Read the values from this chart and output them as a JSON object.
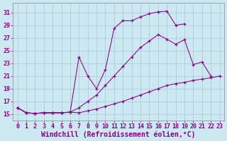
{
  "bg_color": "#cce8f0",
  "grid_color": "#aac8d8",
  "line_color": "#880088",
  "marker": "+",
  "xlabel": "Windchill (Refroidissement éolien,°C)",
  "xlabel_fontsize": 7.0,
  "tick_fontsize": 6.0,
  "xlim": [
    -0.5,
    23.5
  ],
  "ylim": [
    14.0,
    32.5
  ],
  "yticks": [
    15,
    17,
    19,
    21,
    23,
    25,
    27,
    29,
    31
  ],
  "xticks": [
    0,
    1,
    2,
    3,
    4,
    5,
    6,
    7,
    8,
    9,
    10,
    11,
    12,
    13,
    14,
    15,
    16,
    17,
    18,
    19,
    20,
    21,
    22,
    23
  ],
  "curve1_x": [
    0,
    1,
    2,
    3,
    4,
    5,
    6,
    7,
    8,
    9,
    10,
    11,
    12,
    13,
    14,
    15,
    16,
    17,
    18,
    19
  ],
  "curve1_y": [
    16.0,
    15.2,
    15.1,
    15.2,
    15.2,
    15.2,
    15.3,
    24.0,
    21.0,
    19.0,
    22.0,
    28.5,
    29.7,
    29.7,
    30.3,
    30.8,
    31.1,
    31.2,
    29.0,
    29.2
  ],
  "curve2_x": [
    0,
    1,
    2,
    3,
    4,
    5,
    6,
    7,
    8,
    9,
    10,
    11,
    12,
    13,
    14,
    15,
    16,
    17,
    18,
    19,
    20,
    21,
    22
  ],
  "curve2_y": [
    16.0,
    15.2,
    15.1,
    15.2,
    15.2,
    15.2,
    15.3,
    16.0,
    17.0,
    18.0,
    19.5,
    21.0,
    22.5,
    24.0,
    25.5,
    26.5,
    27.5,
    26.8,
    26.0,
    26.7,
    22.8,
    23.2,
    21.0
  ],
  "curve3_x": [
    0,
    1,
    2,
    3,
    4,
    5,
    6,
    7,
    8,
    9,
    10,
    11,
    12,
    13,
    14,
    15,
    16,
    17,
    18,
    19,
    20,
    21,
    22,
    23
  ],
  "curve3_y": [
    16.0,
    15.2,
    15.1,
    15.2,
    15.2,
    15.2,
    15.3,
    15.2,
    15.5,
    15.8,
    16.2,
    16.6,
    17.0,
    17.5,
    18.0,
    18.5,
    19.0,
    19.5,
    19.8,
    20.0,
    20.3,
    20.5,
    20.7,
    21.0
  ]
}
